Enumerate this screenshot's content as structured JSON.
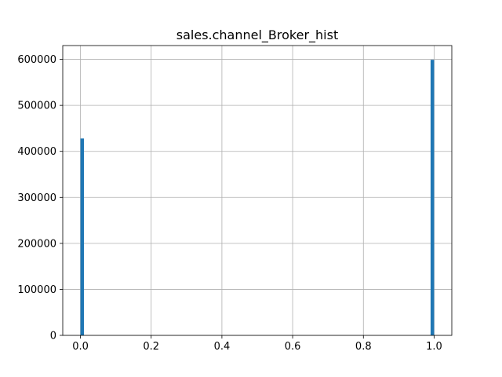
{
  "chart_data": {
    "type": "bar",
    "title": "sales.channel_Broker_hist",
    "xlabel": "",
    "ylabel": "",
    "xlim": [
      -0.05,
      1.05
    ],
    "ylim": [
      0,
      630000
    ],
    "xticks": [
      0.0,
      0.2,
      0.4,
      0.6,
      0.8,
      1.0
    ],
    "xtick_labels": [
      "0.0",
      "0.2",
      "0.4",
      "0.6",
      "0.8",
      "1.0"
    ],
    "yticks": [
      0,
      100000,
      200000,
      300000,
      400000,
      500000,
      600000
    ],
    "ytick_labels": [
      "0",
      "100000",
      "200000",
      "300000",
      "400000",
      "500000",
      "600000"
    ],
    "grid": true,
    "bin_width": 0.01,
    "bars": [
      {
        "x": 0.0,
        "value": 428000
      },
      {
        "x": 0.99,
        "value": 599000
      }
    ],
    "bar_color": "#1f77b4"
  }
}
